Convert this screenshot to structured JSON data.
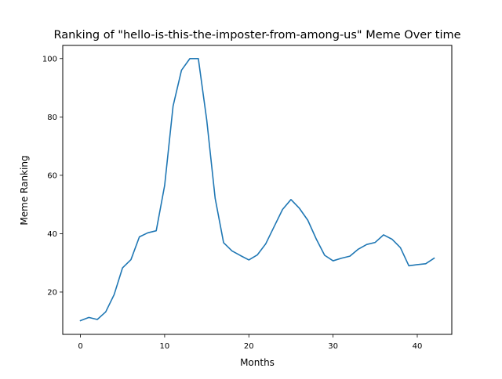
{
  "chart_data": {
    "type": "line",
    "title": "Ranking of \"hello-is-this-the-imposter-from-among-us\" Meme Over time",
    "xlabel": "Months",
    "ylabel": "Meme Ranking",
    "xlim": [
      -2.1,
      44.1
    ],
    "ylim": [
      5.5,
      104.5
    ],
    "xticks": [
      0,
      10,
      20,
      30,
      40
    ],
    "yticks": [
      20,
      40,
      60,
      80,
      100
    ],
    "grid": false,
    "legend": "none",
    "series": [
      {
        "color": "#1f77b4",
        "x": [
          0,
          1,
          2,
          3,
          4,
          5,
          6,
          7,
          8,
          9,
          10,
          11,
          12,
          13,
          14,
          15,
          16,
          17,
          18,
          19,
          20,
          21,
          22,
          23,
          24,
          25,
          26,
          27,
          28,
          29,
          30,
          31,
          32,
          33,
          34,
          35,
          36,
          37,
          38,
          39,
          40,
          41,
          42
        ],
        "y": [
          10.2,
          11.3,
          10.6,
          13.2,
          19.1,
          28.3,
          31.1,
          38.9,
          40.3,
          41.0,
          56.5,
          83.7,
          96.0,
          100.0,
          100.0,
          78.9,
          52.1,
          36.9,
          34.1,
          32.5,
          31.0,
          32.7,
          36.5,
          42.4,
          48.3,
          51.7,
          48.7,
          44.6,
          38.2,
          32.6,
          30.7,
          31.6,
          32.3,
          34.7,
          36.3,
          37.0,
          39.6,
          38.1,
          35.2,
          29.0,
          29.4,
          29.7,
          31.6
        ]
      }
    ]
  }
}
